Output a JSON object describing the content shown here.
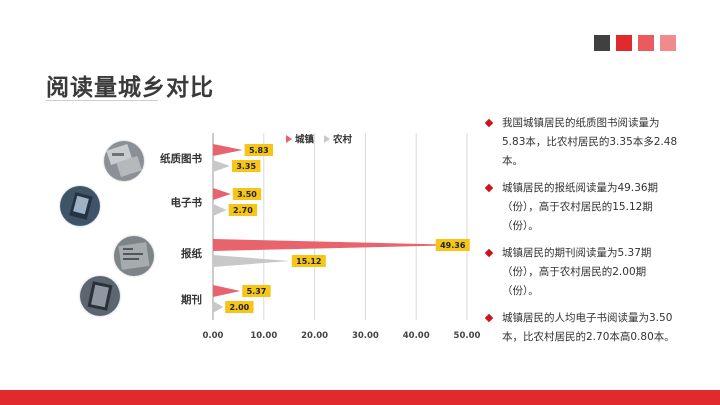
{
  "page": {
    "title": "阅读量城乡对比",
    "swatch_colors": [
      "#404040",
      "#e02a2e",
      "#ea5a5e",
      "#f08a8c"
    ]
  },
  "chart_data": {
    "type": "bar",
    "orientation": "horizontal",
    "bar_shape": "triangle",
    "categories": [
      "纸质图书",
      "电子书",
      "报纸",
      "期刊"
    ],
    "series": [
      {
        "name": "城镇",
        "values": [
          5.83,
          3.5,
          49.36,
          5.37
        ],
        "color": "#e8636b"
      },
      {
        "name": "农村",
        "values": [
          3.35,
          2.7,
          15.12,
          2.0
        ],
        "color": "#c8c8c8"
      }
    ],
    "value_labels": {
      "城镇": [
        "5.83",
        "3.50",
        "49.36",
        "5.37"
      ],
      "农村": [
        "3.35",
        "2.70",
        "15.12",
        "2.00"
      ]
    },
    "xlim": [
      0,
      50
    ],
    "xticks": [
      0,
      10,
      20,
      30,
      40,
      50
    ],
    "xtick_labels": [
      "0.00",
      "10.00",
      "20.00",
      "30.00",
      "40.00",
      "50.00"
    ],
    "legend_position": "top",
    "label_color": "#f5c518"
  },
  "bullets": [
    "我国城镇居民的纸质图书阅读量为5.83本，比农村居民的3.35本多2.48本。",
    "城镇居民的报纸阅读量为49.36期（份），高于农村居民的15.12期（份）。",
    "城镇居民的期刊阅读量为5.37期（份），高于农村居民的2.00期（份）。",
    "城镇居民的人均电子书阅读量为3.50本，比农村居民的2.70本高0.80本。"
  ]
}
